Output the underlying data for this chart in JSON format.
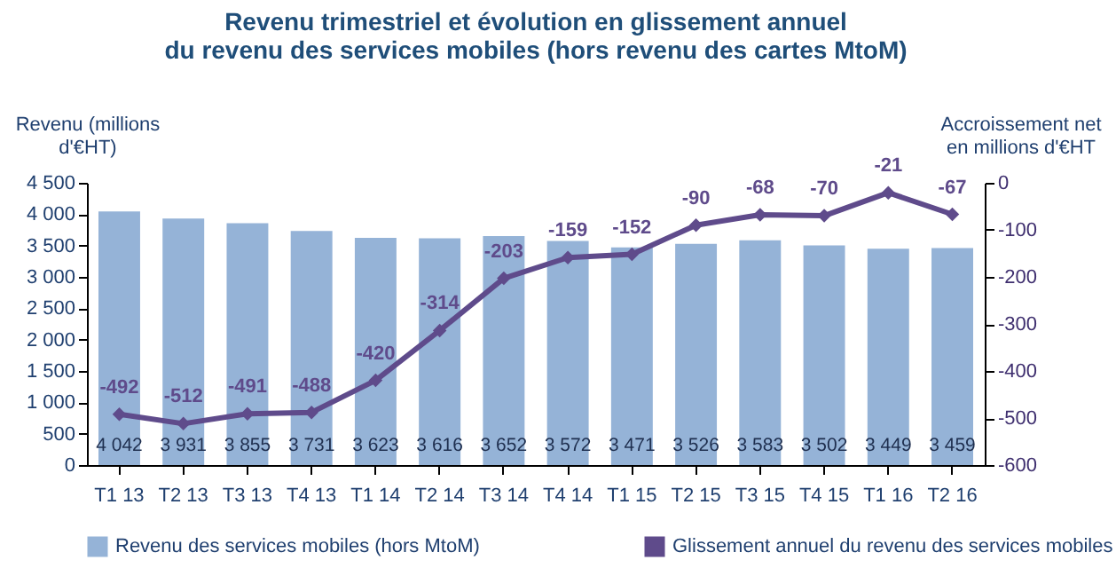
{
  "chart_data": {
    "type": "bar",
    "title": "Revenu trimestriel et évolution en glissement annuel",
    "subtitle": "du revenu des services mobiles (hors revenu des cartes MtoM)",
    "ylabel": "Revenu (millions d'€HT)",
    "y2label": "Accroissement net en millions d'€HT",
    "categories": [
      "T1 13",
      "T2 13",
      "T3 13",
      "T4 13",
      "T1 14",
      "T2 14",
      "T3 14",
      "T4 14",
      "T1 15",
      "T2 15",
      "T3 15",
      "T4 15",
      "T1 16",
      "T2 16"
    ],
    "series": [
      {
        "name": "Revenu des services mobiles (hors MtoM)",
        "color": "#95b3d7",
        "values": [
          4042,
          3931,
          3855,
          3731,
          3623,
          3616,
          3652,
          3572,
          3471,
          3526,
          3583,
          3502,
          3449,
          3459
        ],
        "value_labels": [
          "4 042",
          "3 931",
          "3 855",
          "3 731",
          "3 623",
          "3 616",
          "3 652",
          "3 572",
          "3 471",
          "3 526",
          "3 583",
          "3 502",
          "3 449",
          "3 459"
        ]
      },
      {
        "name": "Glissement annuel du revenu des services mobiles",
        "type": "line",
        "axis": "y2",
        "color": "#5f4b8b",
        "marker": "diamond",
        "values": [
          -492,
          -512,
          -491,
          -488,
          -420,
          -314,
          -203,
          -159,
          -152,
          -90,
          -68,
          -70,
          -21,
          -67
        ],
        "value_labels": [
          "-492",
          "-512",
          "-491",
          "-488",
          "-420",
          "-314",
          "-203",
          "-159",
          "-152",
          "-90",
          "-68",
          "-70",
          "-21",
          "-67"
        ]
      }
    ],
    "ylim": [
      0,
      4500
    ],
    "yticks": [
      0,
      500,
      {
        "value": 1000,
        "label": "1 000"
      },
      {
        "value": 1500,
        "label": "1 500"
      },
      {
        "value": 2000,
        "label": "2 000"
      },
      {
        "value": 2500,
        "label": "2 500"
      },
      {
        "value": 3000,
        "label": "3 000"
      },
      {
        "value": 3500,
        "label": "3 500"
      },
      {
        "value": 4000,
        "label": "4 000"
      },
      {
        "value": 4500,
        "label": "4 500"
      }
    ],
    "y2lim": [
      -600,
      0
    ],
    "y2ticks": [
      -600,
      -500,
      -400,
      -300,
      -200,
      -100,
      0
    ],
    "legend": "bottom",
    "grid": false
  }
}
